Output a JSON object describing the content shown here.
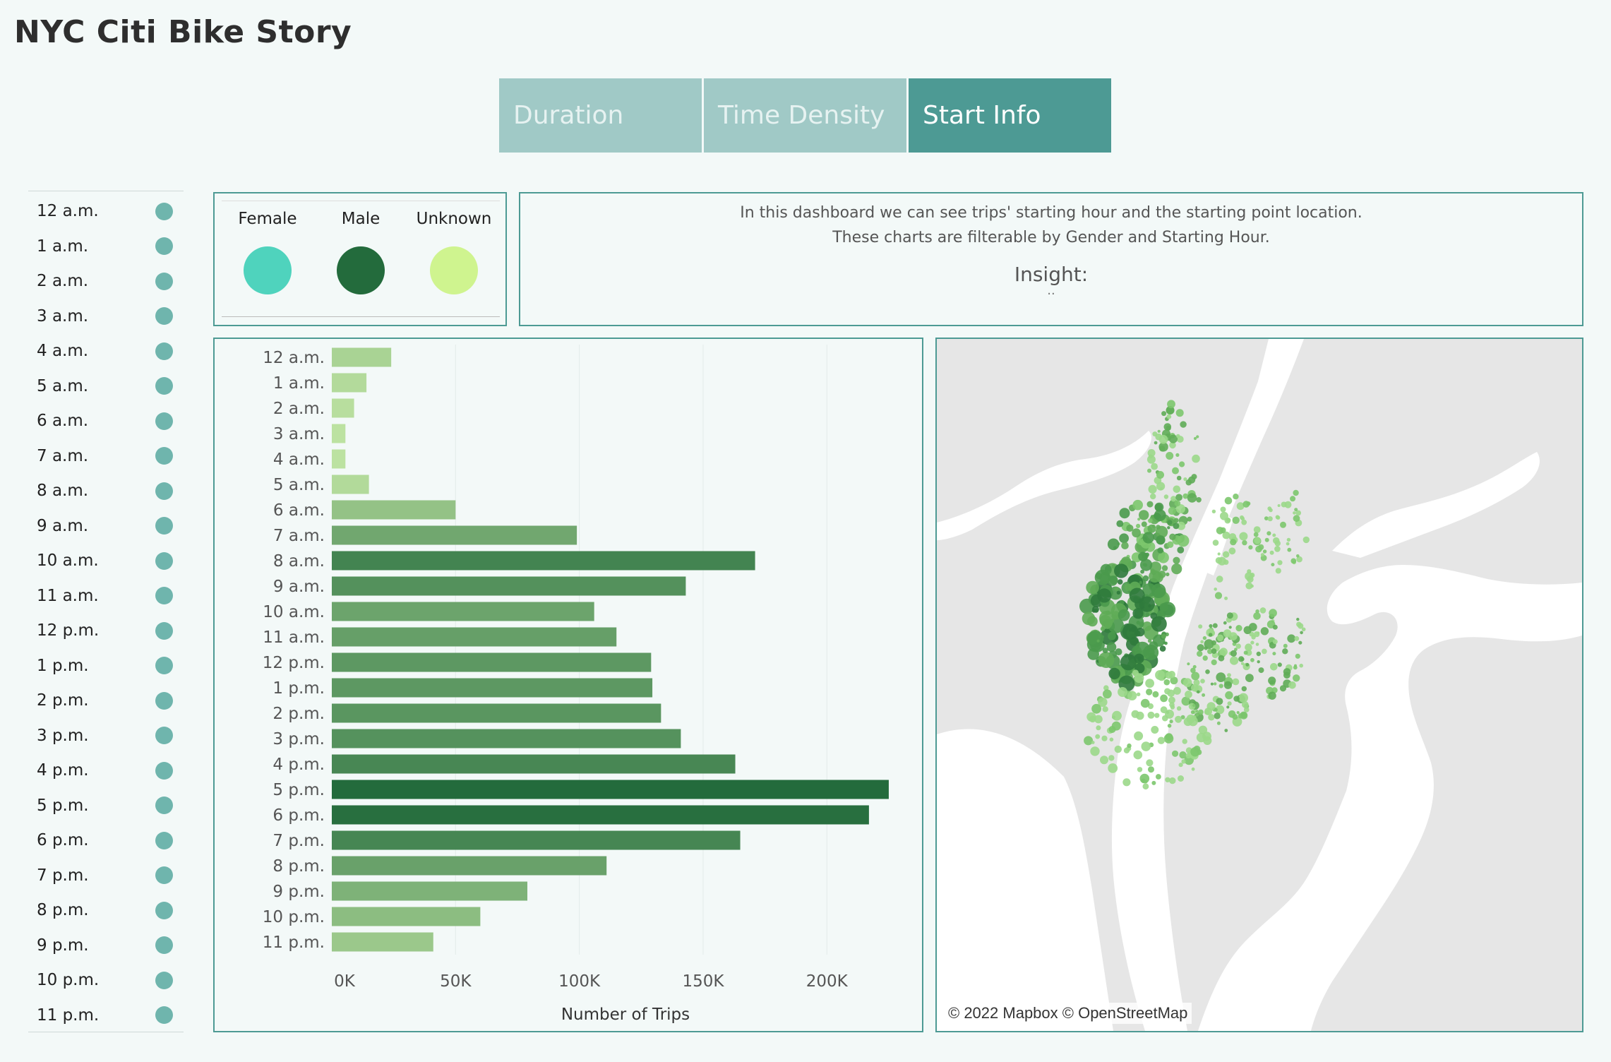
{
  "title": "NYC Citi Bike Story",
  "tabs": [
    {
      "label": "Duration",
      "active": false
    },
    {
      "label": "Time Density",
      "active": false
    },
    {
      "label": "Start Info",
      "active": true
    }
  ],
  "hour_filter": {
    "items": [
      "12 a.m.",
      "1 a.m.",
      "2 a.m.",
      "3 a.m.",
      "4 a.m.",
      "5 a.m.",
      "6 a.m.",
      "7 a.m.",
      "8 a.m.",
      "9 a.m.",
      "10 a.m.",
      "11 a.m.",
      "12 p.m.",
      "1 p.m.",
      "2 p.m.",
      "3 p.m.",
      "4 p.m.",
      "5 p.m.",
      "6 p.m.",
      "7 p.m.",
      "8 p.m.",
      "9 p.m.",
      "10 p.m.",
      "11 p.m."
    ],
    "dot_color": "#6fb5ad"
  },
  "gender_legend": {
    "items": [
      {
        "label": "Female",
        "color": "#4fd3bd"
      },
      {
        "label": "Male",
        "color": "#236b3c"
      },
      {
        "label": "Unknown",
        "color": "#cff48f"
      }
    ]
  },
  "description": {
    "line1": "In this dashboard we can see trips' starting hour and the starting point location.",
    "line2": "These charts are filterable by Gender and Starting Hour.",
    "insight_label": "Insight:",
    "insight_text": ".."
  },
  "chart_data": {
    "type": "bar",
    "orientation": "horizontal",
    "categories": [
      "12 a.m.",
      "1 a.m.",
      "2 a.m.",
      "3 a.m.",
      "4 a.m.",
      "5 a.m.",
      "6 a.m.",
      "7 a.m.",
      "8 a.m.",
      "9 a.m.",
      "10 a.m.",
      "11 a.m.",
      "12 p.m.",
      "1 p.m.",
      "2 p.m.",
      "3 p.m.",
      "4 p.m.",
      "5 p.m.",
      "6 p.m.",
      "7 p.m.",
      "8 p.m.",
      "9 p.m.",
      "10 p.m.",
      "11 p.m."
    ],
    "values": [
      24000,
      14000,
      9000,
      5500,
      5500,
      15000,
      50000,
      99000,
      171000,
      143000,
      106000,
      115000,
      129000,
      129500,
      133000,
      141000,
      163000,
      225000,
      217000,
      165000,
      111000,
      79000,
      60000,
      41000
    ],
    "xlabel": "Number of Trips",
    "ylabel": "",
    "xlim": [
      0,
      235000
    ],
    "xticks": [
      0,
      50000,
      100000,
      150000,
      200000
    ],
    "xtick_labels": [
      "0K",
      "50K",
      "100K",
      "150K",
      "200K"
    ],
    "color_scale": {
      "low": "#c4e8a6",
      "high": "#236b3c"
    },
    "grid": "vertical"
  },
  "map": {
    "credit": "© 2022 Mapbox © OpenStreetMap",
    "water_color": "#ffffff",
    "land_color": "#e6e6e6",
    "point_colors": [
      "#9bd889",
      "#7cc66d",
      "#5fac57",
      "#4a9a4d",
      "#2f7a3c"
    ]
  }
}
